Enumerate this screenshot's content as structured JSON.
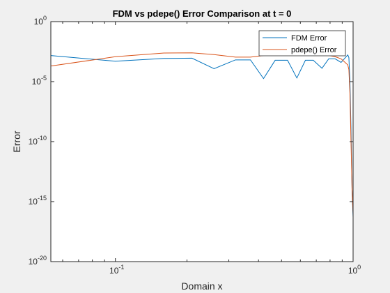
{
  "chart_data": {
    "type": "line",
    "title": "FDM vs pdepe() Error Comparison at t = 0",
    "xlabel": "Domain x",
    "ylabel": "Error",
    "xscale": "log",
    "yscale": "log",
    "xlim": [
      0.0535,
      1.0
    ],
    "ylim": [
      1e-20,
      1
    ],
    "x_ticks": [
      {
        "value": 0.1,
        "base": "10",
        "exp": "-1"
      },
      {
        "value": 1,
        "base": "10",
        "exp": "0"
      }
    ],
    "y_ticks": [
      {
        "value": 1,
        "base": "10",
        "exp": "0"
      },
      {
        "value": 1e-05,
        "base": "10",
        "exp": "-5"
      },
      {
        "value": 1e-10,
        "base": "10",
        "exp": "-10"
      },
      {
        "value": 1e-15,
        "base": "10",
        "exp": "-15"
      },
      {
        "value": 1e-20,
        "base": "10",
        "exp": "-20"
      }
    ],
    "grid": false,
    "legend_position": "top-right",
    "series": [
      {
        "name": "FDM Error",
        "color": "#0072BD",
        "points": [
          [
            0.0535,
            0.0015
          ],
          [
            0.1,
            0.0005
          ],
          [
            0.16,
            0.00085
          ],
          [
            0.21,
            0.0009
          ],
          [
            0.26,
            0.00012
          ],
          [
            0.32,
            0.00065
          ],
          [
            0.37,
            0.00065
          ],
          [
            0.42,
            1.8e-05
          ],
          [
            0.47,
            0.0006
          ],
          [
            0.53,
            0.0006
          ],
          [
            0.58,
            2e-05
          ],
          [
            0.63,
            0.0006
          ],
          [
            0.68,
            0.0006
          ],
          [
            0.74,
            0.00013
          ],
          [
            0.79,
            0.0008
          ],
          [
            0.84,
            0.0008
          ],
          [
            0.89,
            0.0004
          ],
          [
            0.95,
            0.0017
          ],
          [
            0.96,
            0.001
          ],
          [
            0.97,
            1e-05
          ],
          [
            0.98,
            1e-09
          ],
          [
            0.99,
            1e-14
          ],
          [
            1.0,
            5e-17
          ]
        ]
      },
      {
        "name": "pdepe() Error",
        "color": "#D95319",
        "points": [
          [
            0.0535,
            0.0002
          ],
          [
            0.1,
            0.0012
          ],
          [
            0.16,
            0.0024
          ],
          [
            0.21,
            0.0025
          ],
          [
            0.26,
            0.0018
          ],
          [
            0.32,
            0.0011
          ],
          [
            0.37,
            0.0011
          ],
          [
            0.42,
            0.0015
          ],
          [
            0.47,
            0.0017
          ],
          [
            0.53,
            0.0018
          ],
          [
            0.58,
            0.0017
          ],
          [
            0.63,
            0.0016
          ],
          [
            0.68,
            0.0015
          ],
          [
            0.74,
            0.0015
          ],
          [
            0.79,
            0.0015
          ],
          [
            0.84,
            0.0012
          ],
          [
            0.89,
            0.0008
          ],
          [
            0.95,
            0.00025
          ],
          [
            0.96,
            0.0001
          ],
          [
            0.97,
            1e-06
          ],
          [
            0.98,
            1e-10
          ],
          [
            0.99,
            1e-14
          ],
          [
            1.0,
            1e-16
          ]
        ]
      }
    ]
  }
}
